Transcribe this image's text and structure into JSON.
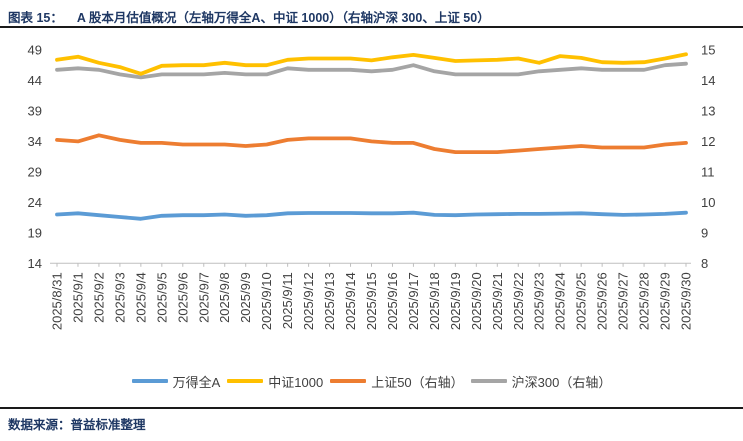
{
  "header": {
    "figure_label": "图表 15：",
    "title": "A 股本月估值概况（左轴万得全A、中证 1000）（右轴沪深 300、上证 50）"
  },
  "footer": {
    "source": "数据来源：普益标准整理"
  },
  "chart_data": {
    "type": "line",
    "title": "A 股本月估值概况",
    "grid": false,
    "legend_position": "bottom",
    "x": [
      "2025/8/31",
      "2025/9/1",
      "2025/9/2",
      "2025/9/3",
      "2025/9/4",
      "2025/9/5",
      "2025/9/6",
      "2025/9/7",
      "2025/9/8",
      "2025/9/9",
      "2025/9/10",
      "2025/9/11",
      "2025/9/12",
      "2025/9/13",
      "2025/9/14",
      "2025/9/15",
      "2025/9/16",
      "2025/9/17",
      "2025/9/18",
      "2025/9/19",
      "2025/9/20",
      "2025/9/21",
      "2025/9/22",
      "2025/9/23",
      "2025/9/24",
      "2025/9/25",
      "2025/9/26",
      "2025/9/27",
      "2025/9/28",
      "2025/9/29",
      "2025/9/30"
    ],
    "left_axis": {
      "min": 14,
      "max": 49,
      "step": 5,
      "ticks": [
        49,
        44,
        39,
        34,
        29,
        24,
        19,
        14
      ]
    },
    "right_axis": {
      "min": 8,
      "max": 15,
      "step": 1,
      "ticks": [
        15,
        14,
        13,
        12,
        11,
        10,
        9,
        8
      ]
    },
    "axis_label_color": "#404040",
    "series": [
      {
        "name": "万得全A",
        "axis": "left",
        "color": "#5B9BD5",
        "values": [
          22.0,
          22.2,
          21.9,
          21.6,
          21.3,
          21.8,
          21.9,
          21.9,
          22.0,
          21.8,
          21.9,
          22.2,
          22.25,
          22.25,
          22.25,
          22.2,
          22.2,
          22.3,
          21.95,
          21.9,
          22.0,
          22.05,
          22.1,
          22.1,
          22.15,
          22.2,
          22.05,
          21.95,
          22.0,
          22.1,
          22.3
        ]
      },
      {
        "name": "中证1000",
        "axis": "left",
        "color": "#FFC000",
        "values": [
          47.4,
          47.9,
          46.9,
          46.2,
          45.1,
          46.4,
          46.5,
          46.5,
          46.9,
          46.5,
          46.5,
          47.4,
          47.6,
          47.6,
          47.6,
          47.3,
          47.8,
          48.2,
          47.7,
          47.2,
          47.3,
          47.4,
          47.6,
          46.9,
          48.0,
          47.7,
          47.0,
          46.9,
          47.0,
          47.6,
          48.3
        ]
      },
      {
        "name": "上证50（右轴）",
        "axis": "right",
        "color": "#ED7D31",
        "values": [
          12.05,
          12.0,
          12.2,
          12.05,
          11.95,
          11.95,
          11.9,
          11.9,
          11.9,
          11.85,
          11.9,
          12.05,
          12.1,
          12.1,
          12.1,
          12.0,
          11.95,
          11.95,
          11.75,
          11.65,
          11.65,
          11.65,
          11.7,
          11.75,
          11.8,
          11.85,
          11.8,
          11.8,
          11.8,
          11.9,
          11.95
        ]
      },
      {
        "name": "沪深300（右轴）",
        "axis": "right",
        "color": "#A5A5A5",
        "values": [
          14.35,
          14.4,
          14.35,
          14.2,
          14.1,
          14.2,
          14.2,
          14.2,
          14.25,
          14.2,
          14.2,
          14.4,
          14.35,
          14.35,
          14.35,
          14.3,
          14.35,
          14.5,
          14.3,
          14.2,
          14.2,
          14.2,
          14.2,
          14.3,
          14.35,
          14.4,
          14.35,
          14.35,
          14.35,
          14.5,
          14.55
        ]
      }
    ]
  }
}
